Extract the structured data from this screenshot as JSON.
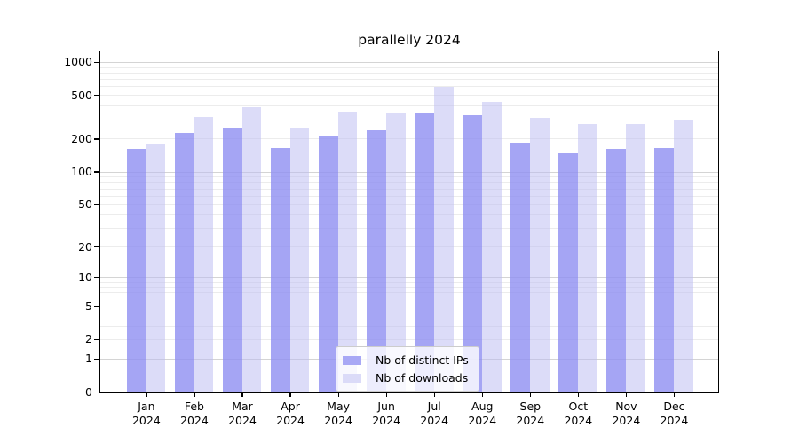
{
  "chart_data": {
    "type": "bar",
    "title": "parallelly 2024",
    "x_year": "2024",
    "categories": [
      "Jan",
      "Feb",
      "Mar",
      "Apr",
      "May",
      "Jun",
      "Jul",
      "Aug",
      "Sep",
      "Oct",
      "Nov",
      "Dec"
    ],
    "series": [
      {
        "key": "distinct-ips",
        "name": "Nb of distinct IPs",
        "color": "#a8a8f5",
        "fill": "#8f8ff1",
        "fill_opacity": 0.8,
        "values": [
          165,
          230,
          250,
          167,
          212,
          242,
          351,
          336,
          187,
          149,
          164,
          166
        ]
      },
      {
        "key": "downloads",
        "name": "Nb of downloads",
        "color": "#dbdbf8",
        "fill": "#bbbbf2",
        "fill_opacity": 0.52,
        "values": [
          183,
          321,
          393,
          255,
          357,
          352,
          605,
          444,
          315,
          274,
          276,
          302
        ]
      }
    ],
    "yscale": "log1p",
    "yticks": [
      0,
      1,
      2,
      5,
      10,
      20,
      50,
      100,
      200,
      500,
      1000
    ],
    "grid_minor_values": [
      2,
      3,
      4,
      5,
      6,
      7,
      8,
      9,
      20,
      30,
      40,
      50,
      60,
      70,
      80,
      90,
      200,
      300,
      400,
      500,
      600,
      700,
      800,
      900
    ],
    "grid_major_values": [
      1,
      10,
      100,
      1000
    ],
    "ylim": [
      0,
      1250
    ],
    "grid": true,
    "grid_major_color": "#d4d4d4",
    "grid_minor_color": "#ececec",
    "background_color": "#ffffff",
    "legend_position": "lower center"
  }
}
